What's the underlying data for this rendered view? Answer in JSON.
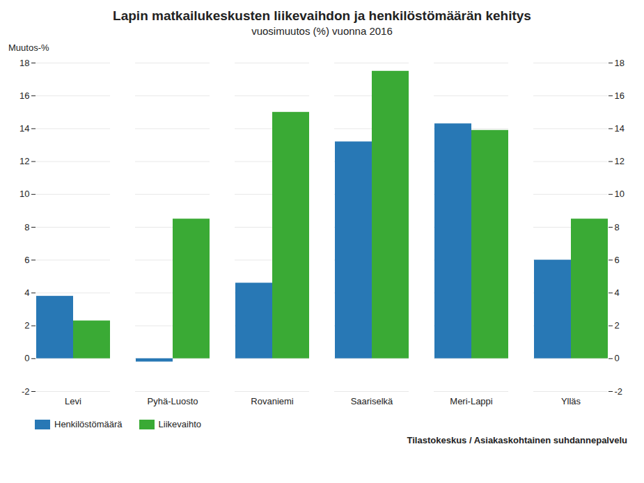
{
  "chart_data": {
    "type": "bar",
    "title": "Lapin matkailukeskusten liikevaihdon ja henkilöstömäärän kehitys",
    "subtitle": "vuosimuutos (%) vuonna 2016",
    "ylabel": "Muutos-%",
    "footnote": "Tilastokeskus / Asiakaskohtainen suhdannepalvelu",
    "categories": [
      "Levi",
      "Pyhä-Luosto",
      "Rovaniemi",
      "Saariselkä",
      "Meri-Lappi",
      "Ylläs"
    ],
    "series": [
      {
        "name": "Henkilöstömäärä",
        "color": "#2878b5",
        "values": [
          3.8,
          -0.2,
          4.6,
          13.2,
          14.3,
          6.0
        ]
      },
      {
        "name": "Liikevaihto",
        "color": "#3aaa35",
        "values": [
          2.3,
          8.5,
          15.0,
          17.5,
          13.9,
          8.5
        ]
      }
    ],
    "ylim": [
      -2,
      18
    ],
    "yticks": [
      -2,
      0,
      2,
      4,
      6,
      8,
      10,
      12,
      14,
      16,
      18
    ],
    "y2lim": [
      -2,
      18
    ],
    "y2ticks": [
      -2,
      0,
      2,
      4,
      6,
      8,
      10,
      12,
      14,
      16,
      18
    ],
    "grid": true,
    "legend": "lower left"
  }
}
